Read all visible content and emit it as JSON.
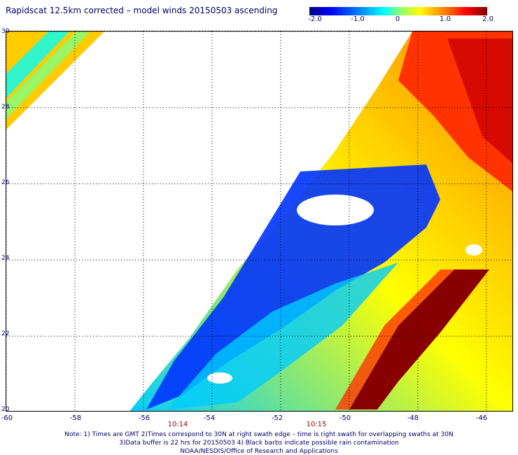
{
  "title": "Rapidscat 12.5km corrected – model winds 20150503 ascending",
  "colorbar": {
    "ticks": [
      "-2.0",
      "-1.0",
      "0",
      "1.0",
      "2.0"
    ],
    "tick_values": [
      -2.0,
      -1.0,
      0,
      1.0,
      2.0
    ],
    "range": [
      -2.0,
      2.0
    ],
    "colors": [
      "#00007f",
      "#0000ff",
      "#0080ff",
      "#00ffff",
      "#80ff80",
      "#ffff00",
      "#ff8000",
      "#ff0000",
      "#7f0000"
    ]
  },
  "axes": {
    "lon_labels": [
      "-60",
      "-58",
      "-56",
      "-54",
      "-52",
      "-50",
      "-48",
      "-46"
    ],
    "lon_values": [
      -60,
      -58,
      -56,
      -54,
      -52,
      -50,
      -48,
      -46
    ],
    "lat_labels": [
      "20",
      "22",
      "24",
      "26",
      "28",
      "30"
    ],
    "lat_values": [
      20,
      22,
      24,
      26,
      28,
      30
    ],
    "lon_range": [
      -60,
      -45.2
    ],
    "lat_range": [
      20,
      30
    ],
    "grid": "dotted"
  },
  "times": [
    {
      "label": "10:14",
      "lon": -55
    },
    {
      "label": "10:15",
      "lon": -51
    }
  ],
  "notes": [
    "Note: 1) Times are GMT 2)Times correspond to 30N at right swath edge – time is right swath for overlapping swaths at 30N",
    "3)Data buffer is 22 hrs for 20150503 4) Black barbs indicate possible rain contamination",
    "NOAA/NESDIS/Office of Research and Applications"
  ]
}
